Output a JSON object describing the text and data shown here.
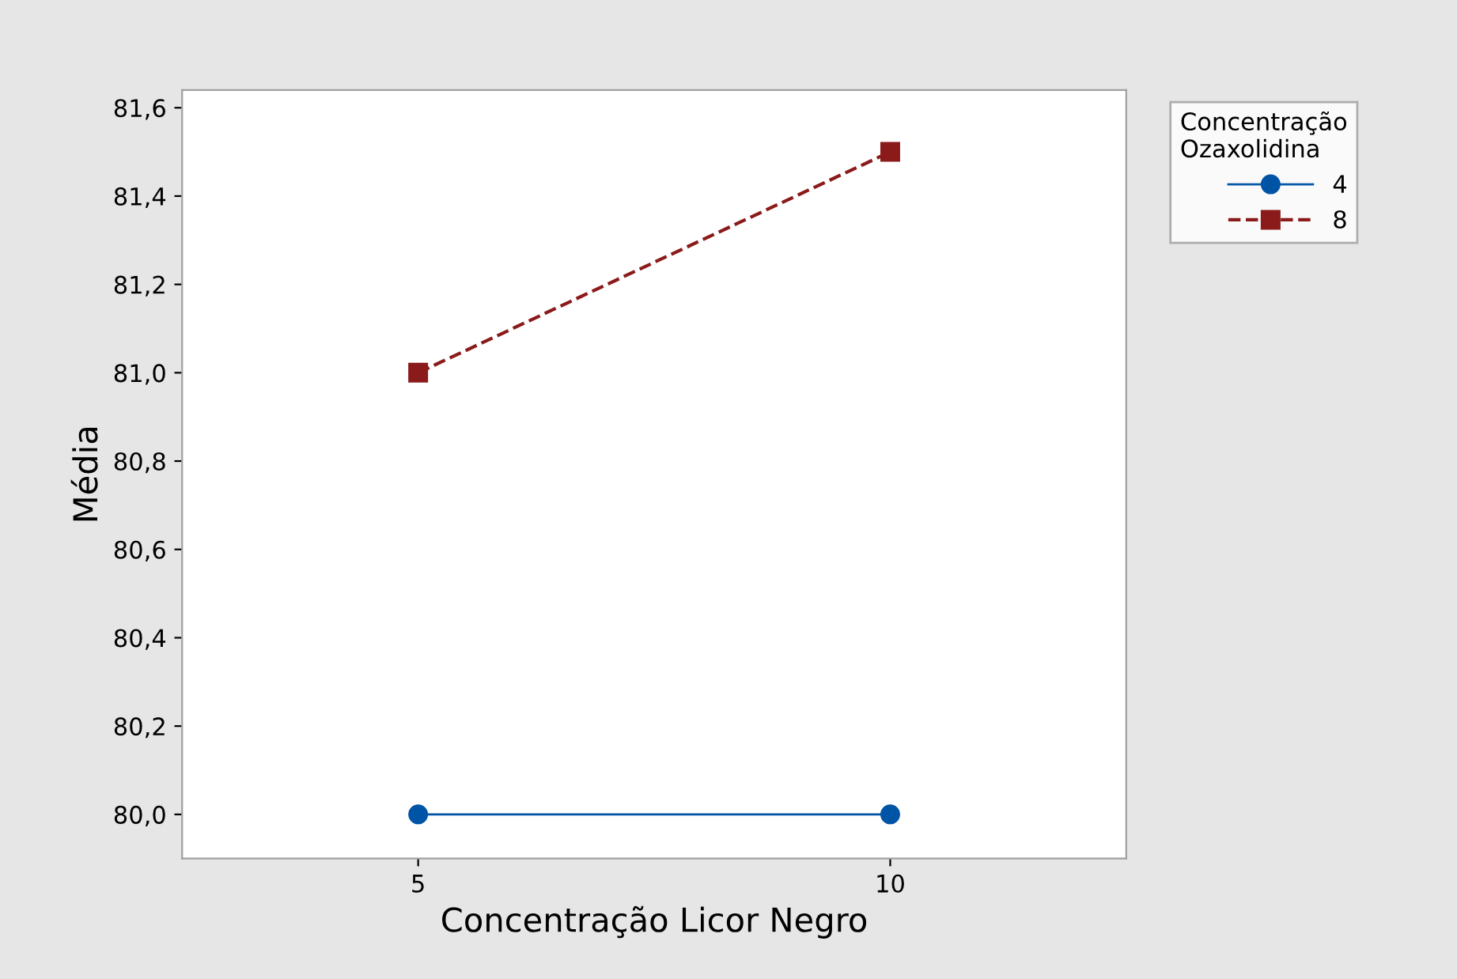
{
  "chart_data": {
    "type": "line",
    "xlabel": "Concentração Licor Negro",
    "ylabel": "Média",
    "legend_title": "Concentração\nOzaxolidina",
    "categories": [
      "5",
      "10"
    ],
    "series": [
      {
        "name": "4",
        "color": "#0054a6",
        "values": [
          80.0,
          80.0
        ],
        "marker": "circle",
        "line_style": "solid"
      },
      {
        "name": "8",
        "color": "#8b1a1a",
        "values": [
          81.0,
          81.5
        ],
        "marker": "square",
        "line_style": "dashed"
      }
    ],
    "ylim": [
      79.9,
      81.64
    ],
    "yticks": [
      {
        "value": 80.0,
        "label": "80,0"
      },
      {
        "value": 80.2,
        "label": "80,2"
      },
      {
        "value": 80.4,
        "label": "80,4"
      },
      {
        "value": 80.6,
        "label": "80,6"
      },
      {
        "value": 80.8,
        "label": "80,8"
      },
      {
        "value": 81.0,
        "label": "81,0"
      },
      {
        "value": 81.2,
        "label": "81,2"
      },
      {
        "value": 81.4,
        "label": "81,4"
      },
      {
        "value": 81.6,
        "label": "81,6"
      }
    ],
    "grid": false,
    "legend": "top right"
  }
}
